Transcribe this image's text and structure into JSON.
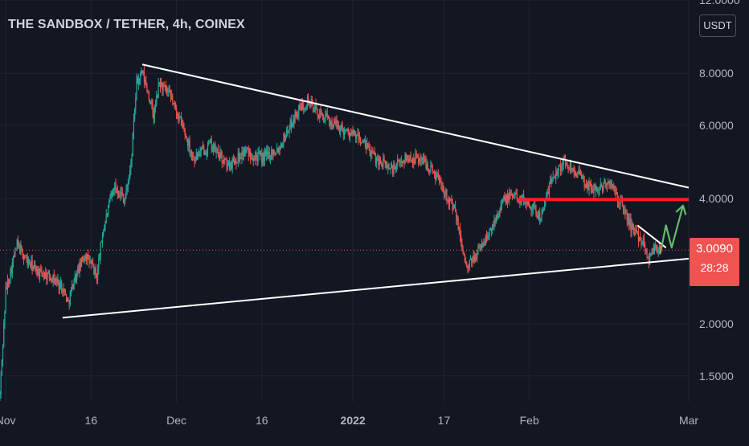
{
  "header": {
    "title": "THE SANDBOX / TETHER, 4h, COINEX"
  },
  "price_axis": {
    "unit": "USDT"
  },
  "last_price": {
    "value": "3.0090",
    "countdown": "28:28"
  },
  "colors": {
    "background": "#131722",
    "up": "#26a69a",
    "down": "#ef5350",
    "trendline": "#ffffff",
    "resistance": "#ff1e1e",
    "projection": "#66bb6a",
    "last_price_tag": "#f05350"
  },
  "chart_data": {
    "type": "candlestick",
    "title": "THE SANDBOX / TETHER, 4h, COINEX",
    "xlabel": "",
    "ylabel": "",
    "y_scale": "log",
    "ylim": [
      1.3,
      12.0
    ],
    "xlim": [
      "2021-10-31",
      "2022-03-01"
    ],
    "y_ticks": [
      "1.5000",
      "2.0000",
      "3.0090",
      "4.0000",
      "6.0000",
      "8.0000",
      "12.0000"
    ],
    "x_ticks": [
      {
        "label": "Nov",
        "date": "2021-11-01",
        "bold": false
      },
      {
        "label": "16",
        "date": "2021-11-16",
        "bold": false
      },
      {
        "label": "Dec",
        "date": "2021-12-01",
        "bold": false
      },
      {
        "label": "16",
        "date": "2021-12-16",
        "bold": false
      },
      {
        "label": "2022",
        "date": "2022-01-01",
        "bold": true
      },
      {
        "label": "17",
        "date": "2022-01-17",
        "bold": false
      },
      {
        "label": "Feb",
        "date": "2022-02-01",
        "bold": false
      },
      {
        "label": "Mar",
        "date": "2022-03-01",
        "bold": false
      }
    ],
    "price_path": [
      [
        "2021-10-31",
        1.35
      ],
      [
        "2021-11-01",
        2.4
      ],
      [
        "2021-11-03",
        3.1
      ],
      [
        "2021-11-05",
        2.8
      ],
      [
        "2021-11-07",
        2.65
      ],
      [
        "2021-11-09",
        2.6
      ],
      [
        "2021-11-11",
        2.45
      ],
      [
        "2021-11-12",
        2.25
      ],
      [
        "2021-11-13",
        2.55
      ],
      [
        "2021-11-15",
        2.95
      ],
      [
        "2021-11-17",
        2.6
      ],
      [
        "2021-11-18",
        3.3
      ],
      [
        "2021-11-20",
        4.3
      ],
      [
        "2021-11-22",
        4.0
      ],
      [
        "2021-11-23",
        4.8
      ],
      [
        "2021-11-24",
        7.6
      ],
      [
        "2021-11-25",
        8.0
      ],
      [
        "2021-11-26",
        7.2
      ],
      [
        "2021-11-27",
        6.3
      ],
      [
        "2021-11-28",
        7.6
      ],
      [
        "2021-11-30",
        7.0
      ],
      [
        "2021-12-02",
        6.0
      ],
      [
        "2021-12-04",
        5.0
      ],
      [
        "2021-12-07",
        5.4
      ],
      [
        "2021-12-10",
        4.8
      ],
      [
        "2021-12-13",
        5.2
      ],
      [
        "2021-12-16",
        5.0
      ],
      [
        "2021-12-19",
        5.3
      ],
      [
        "2021-12-22",
        6.4
      ],
      [
        "2021-12-24",
        6.9
      ],
      [
        "2021-12-26",
        6.4
      ],
      [
        "2021-12-29",
        6.0
      ],
      [
        "2022-01-02",
        5.6
      ],
      [
        "2022-01-05",
        5.0
      ],
      [
        "2022-01-08",
        4.7
      ],
      [
        "2022-01-10",
        5.0
      ],
      [
        "2022-01-13",
        5.0
      ],
      [
        "2022-01-16",
        4.5
      ],
      [
        "2022-01-19",
        3.7
      ],
      [
        "2022-01-21",
        2.7
      ],
      [
        "2022-01-23",
        3.0
      ],
      [
        "2022-01-25",
        3.3
      ],
      [
        "2022-01-27",
        3.9
      ],
      [
        "2022-01-29",
        4.1
      ],
      [
        "2022-02-01",
        3.9
      ],
      [
        "2022-02-03",
        3.6
      ],
      [
        "2022-02-05",
        4.5
      ],
      [
        "2022-02-07",
        4.9
      ],
      [
        "2022-02-09",
        4.7
      ],
      [
        "2022-02-11",
        4.3
      ],
      [
        "2022-02-13",
        4.2
      ],
      [
        "2022-02-15",
        4.4
      ],
      [
        "2022-02-17",
        3.9
      ],
      [
        "2022-02-19",
        3.4
      ],
      [
        "2022-02-21",
        3.15
      ],
      [
        "2022-02-22",
        2.85
      ],
      [
        "2022-02-23",
        3.1
      ],
      [
        "2022-02-24",
        3.0
      ]
    ],
    "price_line": {
      "value": 3.009,
      "style": "dotted",
      "color": "#f05350"
    },
    "annotations": [
      {
        "kind": "trendline",
        "name": "upper-trendline",
        "from": [
          "2021-11-25",
          8.4
        ],
        "to": [
          "2022-03-01",
          4.25
        ],
        "color": "#ffffff"
      },
      {
        "kind": "trendline",
        "name": "lower-trendline",
        "from": [
          "2021-11-11",
          2.07
        ],
        "to": [
          "2022-03-01",
          2.87
        ],
        "color": "#ffffff"
      },
      {
        "kind": "trendline",
        "name": "short-downtrend-line",
        "from": [
          "2022-02-20",
          3.45
        ],
        "to": [
          "2022-02-25",
          3.05
        ],
        "color": "#ffffff"
      },
      {
        "kind": "hline",
        "name": "resistance-line",
        "value": 3.98,
        "from": "2022-01-30",
        "to": "2022-03-01",
        "color": "#ff1e1e"
      },
      {
        "kind": "arrow",
        "name": "projection-arrow",
        "points": [
          [
            "2022-02-24",
            2.95
          ],
          [
            "2022-02-25",
            3.45
          ],
          [
            "2022-02-26",
            3.05
          ],
          [
            "2022-02-28",
            3.85
          ]
        ],
        "color": "#66bb6a"
      }
    ]
  }
}
